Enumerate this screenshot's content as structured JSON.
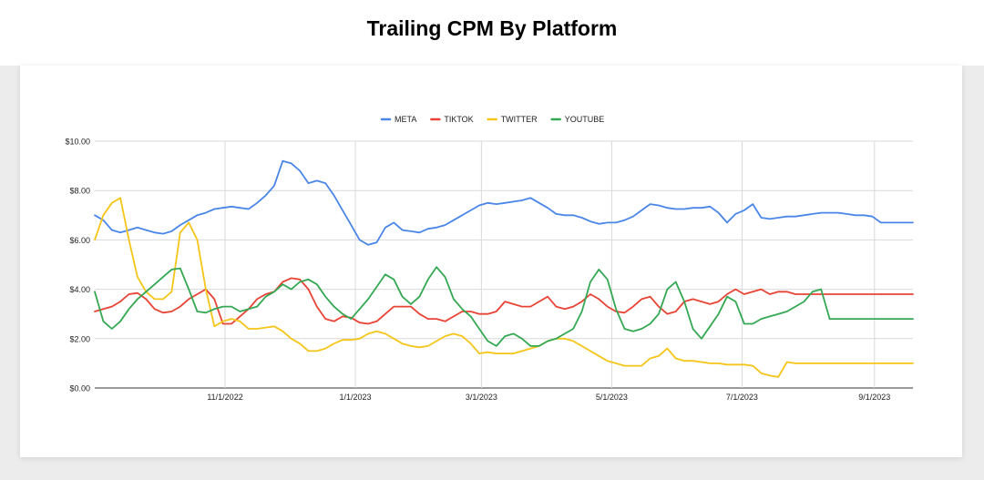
{
  "page": {
    "title": "Trailing CPM By Platform"
  },
  "chart_data": {
    "type": "line",
    "title": "Trailing CPM By Platform",
    "xlabel": "",
    "ylabel": "",
    "ylim": [
      0,
      10
    ],
    "yticks": [
      0,
      2,
      4,
      6,
      8,
      10
    ],
    "ytick_labels": [
      "$0.00",
      "$2.00",
      "$4.00",
      "$6.00",
      "$8.00",
      "$10.00"
    ],
    "xlim": [
      "2022-09-01",
      "2023-09-19"
    ],
    "xticks": [
      "2022-11-01",
      "2023-01-01",
      "2023-03-01",
      "2023-05-01",
      "2023-07-01",
      "2023-09-01"
    ],
    "xtick_labels": [
      "11/1/2022",
      "1/1/2023",
      "3/1/2023",
      "5/1/2023",
      "7/1/2023",
      "9/1/2023"
    ],
    "grid": true,
    "legend_position": "top-center",
    "colors": {
      "META": "#4a86e8",
      "TIKTOK": "#e84335",
      "TWITTER": "#f5c518",
      "YOUTUBE": "#34a853"
    },
    "x": [
      "2022-09-01",
      "2022-09-05",
      "2022-09-09",
      "2022-09-13",
      "2022-09-17",
      "2022-09-21",
      "2022-09-25",
      "2022-09-29",
      "2022-10-03",
      "2022-10-07",
      "2022-10-11",
      "2022-10-15",
      "2022-10-19",
      "2022-10-23",
      "2022-10-27",
      "2022-10-31",
      "2022-11-04",
      "2022-11-08",
      "2022-11-12",
      "2022-11-16",
      "2022-11-20",
      "2022-11-24",
      "2022-11-28",
      "2022-12-02",
      "2022-12-06",
      "2022-12-10",
      "2022-12-14",
      "2022-12-18",
      "2022-12-22",
      "2022-12-26",
      "2022-12-30",
      "2023-01-03",
      "2023-01-07",
      "2023-01-11",
      "2023-01-15",
      "2023-01-19",
      "2023-01-23",
      "2023-01-27",
      "2023-01-31",
      "2023-02-04",
      "2023-02-08",
      "2023-02-12",
      "2023-02-16",
      "2023-02-20",
      "2023-02-24",
      "2023-02-28",
      "2023-03-04",
      "2023-03-08",
      "2023-03-12",
      "2023-03-16",
      "2023-03-20",
      "2023-03-24",
      "2023-03-28",
      "2023-04-01",
      "2023-04-05",
      "2023-04-09",
      "2023-04-13",
      "2023-04-17",
      "2023-04-21",
      "2023-04-25",
      "2023-04-29",
      "2023-05-03",
      "2023-05-07",
      "2023-05-11",
      "2023-05-15",
      "2023-05-19",
      "2023-05-23",
      "2023-05-27",
      "2023-05-31",
      "2023-06-04",
      "2023-06-08",
      "2023-06-12",
      "2023-06-16",
      "2023-06-20",
      "2023-06-24",
      "2023-06-28",
      "2023-07-02",
      "2023-07-06",
      "2023-07-10",
      "2023-07-14",
      "2023-07-18",
      "2023-07-22",
      "2023-07-26",
      "2023-07-30",
      "2023-08-03",
      "2023-08-07",
      "2023-08-11",
      "2023-08-15",
      "2023-08-19",
      "2023-08-23",
      "2023-08-27",
      "2023-08-31",
      "2023-09-04",
      "2023-09-08",
      "2023-09-12",
      "2023-09-16",
      "2023-09-19"
    ],
    "series": [
      {
        "name": "META",
        "values": [
          7.0,
          6.8,
          6.4,
          6.3,
          6.4,
          6.5,
          6.4,
          6.3,
          6.25,
          6.35,
          6.6,
          6.8,
          7.0,
          7.1,
          7.25,
          7.3,
          7.35,
          7.3,
          7.25,
          7.5,
          7.8,
          8.2,
          9.2,
          9.1,
          8.8,
          8.3,
          8.4,
          8.3,
          7.8,
          7.2,
          6.6,
          6.0,
          5.8,
          5.9,
          6.5,
          6.7,
          6.4,
          6.35,
          6.3,
          6.45,
          6.5,
          6.6,
          6.8,
          7.0,
          7.2,
          7.4,
          7.5,
          7.45,
          7.5,
          7.55,
          7.6,
          7.7,
          7.5,
          7.3,
          7.05,
          7.0,
          7.0,
          6.9,
          6.75,
          6.65,
          6.7,
          6.7,
          6.8,
          6.95,
          7.2,
          7.45,
          7.4,
          7.3,
          7.25,
          7.25,
          7.3,
          7.3,
          7.35,
          7.1,
          6.7,
          7.05,
          7.2,
          7.45,
          6.9,
          6.85,
          6.9,
          6.95,
          6.95,
          7.0,
          7.05,
          7.1,
          7.1,
          7.1,
          7.05,
          7.0,
          7.0,
          6.95,
          6.7,
          6.7,
          6.7,
          6.7,
          6.7
        ]
      },
      {
        "name": "TIKTOK",
        "values": [
          3.1,
          3.2,
          3.3,
          3.5,
          3.8,
          3.85,
          3.6,
          3.2,
          3.05,
          3.1,
          3.3,
          3.6,
          3.8,
          4.0,
          3.6,
          2.6,
          2.6,
          2.9,
          3.2,
          3.6,
          3.8,
          3.9,
          4.3,
          4.45,
          4.4,
          4.0,
          3.3,
          2.8,
          2.7,
          2.9,
          2.85,
          2.65,
          2.6,
          2.7,
          3.0,
          3.3,
          3.3,
          3.3,
          3.0,
          2.8,
          2.8,
          2.7,
          2.9,
          3.1,
          3.1,
          3.0,
          3.0,
          3.1,
          3.5,
          3.4,
          3.3,
          3.3,
          3.5,
          3.7,
          3.3,
          3.2,
          3.3,
          3.5,
          3.8,
          3.6,
          3.3,
          3.1,
          3.05,
          3.3,
          3.6,
          3.7,
          3.3,
          3.0,
          3.1,
          3.5,
          3.6,
          3.5,
          3.4,
          3.5,
          3.8,
          4.0,
          3.8,
          3.9,
          4.0,
          3.8,
          3.9,
          3.9,
          3.8,
          3.8,
          3.8,
          3.8,
          3.8,
          3.8,
          3.8,
          3.8,
          3.8,
          3.8,
          3.8,
          3.8,
          3.8,
          3.8,
          3.8
        ]
      },
      {
        "name": "TWITTER",
        "values": [
          6.0,
          7.0,
          7.5,
          7.7,
          6.0,
          4.5,
          3.9,
          3.6,
          3.6,
          3.9,
          6.3,
          6.7,
          6.0,
          4.0,
          2.5,
          2.7,
          2.8,
          2.7,
          2.4,
          2.4,
          2.45,
          2.5,
          2.3,
          2.0,
          1.8,
          1.5,
          1.5,
          1.6,
          1.8,
          1.95,
          1.95,
          2.0,
          2.2,
          2.3,
          2.2,
          2.0,
          1.8,
          1.7,
          1.65,
          1.7,
          1.9,
          2.1,
          2.2,
          2.1,
          1.8,
          1.4,
          1.45,
          1.4,
          1.4,
          1.4,
          1.5,
          1.6,
          1.7,
          1.9,
          2.0,
          2.0,
          1.9,
          1.7,
          1.5,
          1.3,
          1.1,
          1.0,
          0.9,
          0.9,
          0.9,
          1.2,
          1.3,
          1.6,
          1.2,
          1.1,
          1.1,
          1.05,
          1.0,
          1.0,
          0.95,
          0.95,
          0.95,
          0.9,
          0.6,
          0.5,
          0.45,
          1.05,
          1.0,
          1.0,
          1.0,
          1.0,
          1.0,
          1.0,
          1.0,
          1.0,
          1.0,
          1.0,
          1.0,
          1.0,
          1.0,
          1.0,
          1.0
        ]
      },
      {
        "name": "YOUTUBE",
        "values": [
          3.9,
          2.7,
          2.4,
          2.7,
          3.2,
          3.6,
          3.9,
          4.2,
          4.5,
          4.8,
          4.85,
          4.0,
          3.1,
          3.05,
          3.2,
          3.3,
          3.3,
          3.1,
          3.2,
          3.3,
          3.7,
          3.9,
          4.2,
          4.0,
          4.3,
          4.4,
          4.2,
          3.7,
          3.3,
          3.0,
          2.8,
          3.2,
          3.6,
          4.1,
          4.6,
          4.4,
          3.7,
          3.4,
          3.7,
          4.4,
          4.9,
          4.5,
          3.6,
          3.2,
          2.9,
          2.4,
          1.9,
          1.7,
          2.1,
          2.2,
          2.0,
          1.7,
          1.7,
          1.9,
          2.0,
          2.2,
          2.4,
          3.1,
          4.3,
          4.8,
          4.4,
          3.2,
          2.4,
          2.3,
          2.4,
          2.6,
          3.0,
          4.0,
          4.3,
          3.5,
          2.4,
          2.0,
          2.5,
          3.0,
          3.7,
          3.5,
          2.6,
          2.6,
          2.8,
          2.9,
          3.0,
          3.1,
          3.3,
          3.5,
          3.9,
          4.0,
          2.8,
          2.8,
          2.8,
          2.8,
          2.8,
          2.8,
          2.8,
          2.8,
          2.8,
          2.8,
          2.8
        ]
      }
    ]
  }
}
